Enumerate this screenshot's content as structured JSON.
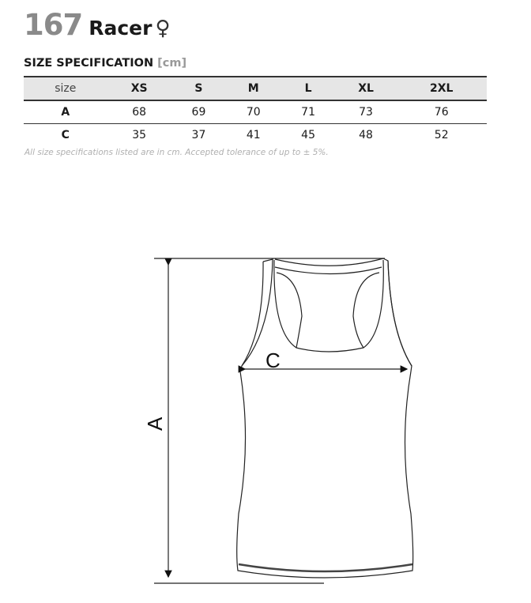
{
  "product": {
    "number": "167",
    "name": "Racer",
    "gender_symbol": "♀"
  },
  "spec": {
    "title": "SIZE SPECIFICATION",
    "unit": "[cm]"
  },
  "table": {
    "header": [
      "size",
      "XS",
      "S",
      "M",
      "L",
      "XL",
      "2XL"
    ],
    "rows": [
      {
        "label": "A",
        "values": [
          "68",
          "69",
          "70",
          "71",
          "73",
          "76"
        ]
      },
      {
        "label": "C",
        "values": [
          "35",
          "37",
          "41",
          "45",
          "48",
          "52"
        ]
      }
    ]
  },
  "note": "All size specifications listed are in cm. Accepted tolerance of up to ± 5%.",
  "diagram": {
    "length_label": "A",
    "chest_label": "C"
  }
}
